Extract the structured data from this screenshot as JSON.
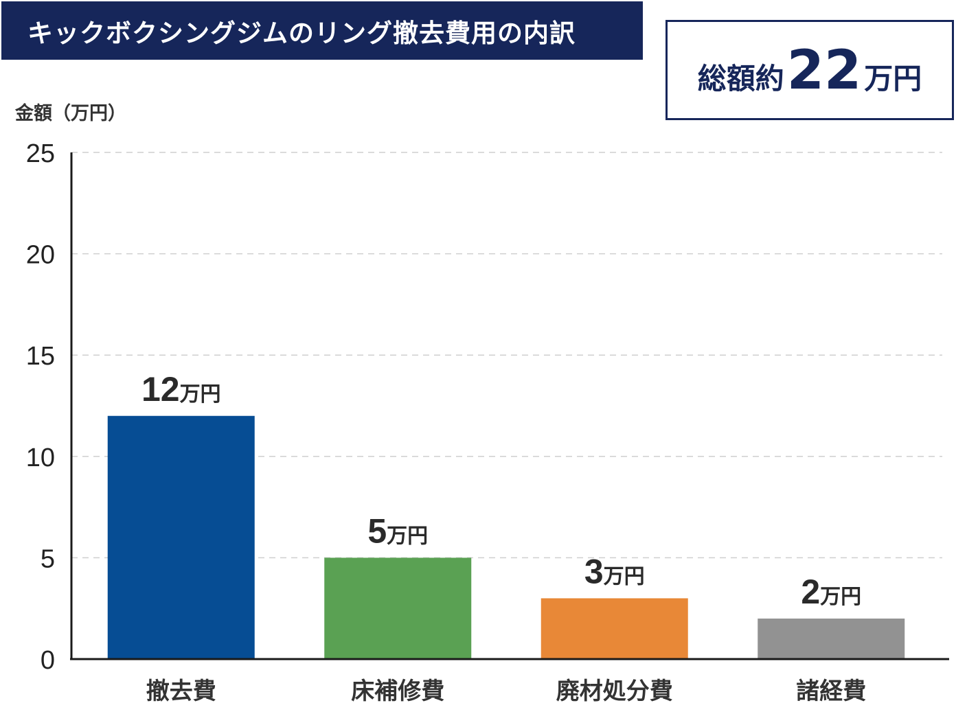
{
  "title": "キックボクシングジムのリング撤去費用の内訳",
  "total": {
    "prefix": "総額約",
    "value": "22",
    "unit": "万円"
  },
  "chart_data": {
    "type": "bar",
    "title": "キックボクシングジムのリング撤去費用の内訳",
    "ylabel": "金額（万円）",
    "xlabel": "",
    "ylim": [
      0,
      25
    ],
    "yticks": [
      0,
      5,
      10,
      15,
      20,
      25
    ],
    "grid": true,
    "categories": [
      "撤去費",
      "床補修費",
      "廃材処分費",
      "諸経費"
    ],
    "values": [
      12,
      5,
      3,
      2
    ],
    "value_unit": "万円",
    "colors": [
      "#064d94",
      "#5aa153",
      "#e88837",
      "#929292"
    ]
  }
}
